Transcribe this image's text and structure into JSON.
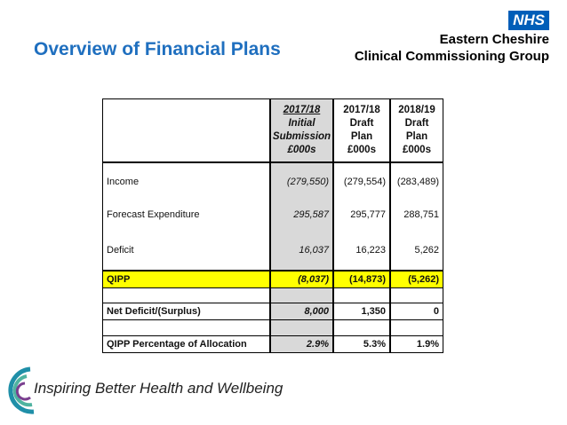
{
  "header": {
    "title": "Overview of Financial Plans"
  },
  "logo": {
    "badge": "NHS",
    "lines": [
      "Eastern Cheshire",
      "Clinical Commissioning Group"
    ]
  },
  "table": {
    "columns": [
      [
        "2017/18",
        "Initial",
        "Submission",
        "£000s"
      ],
      [
        "2017/18",
        "Draft",
        "Plan",
        "£000s"
      ],
      [
        "2018/19",
        "Draft",
        "Plan",
        "£000s"
      ]
    ],
    "rows": [
      [
        "Income",
        "(279,550)",
        "(279,554)",
        "(283,489)"
      ],
      [
        "Forecast Expenditure",
        "295,587",
        "295,777",
        "288,751"
      ],
      [
        "Deficit",
        "16,037",
        "16,223",
        "5,262"
      ],
      [
        "QIPP",
        "(8,037)",
        "(14,873)",
        "(5,262)"
      ],
      [
        "Net Deficit/(Surplus)",
        "8,000",
        "1,350",
        "0"
      ],
      [
        "QIPP Percentage of Allocation",
        "2.9%",
        "5.3%",
        "1.9%"
      ]
    ]
  },
  "footer": {
    "tagline": "Inspiring Better Health and Wellbeing"
  }
}
